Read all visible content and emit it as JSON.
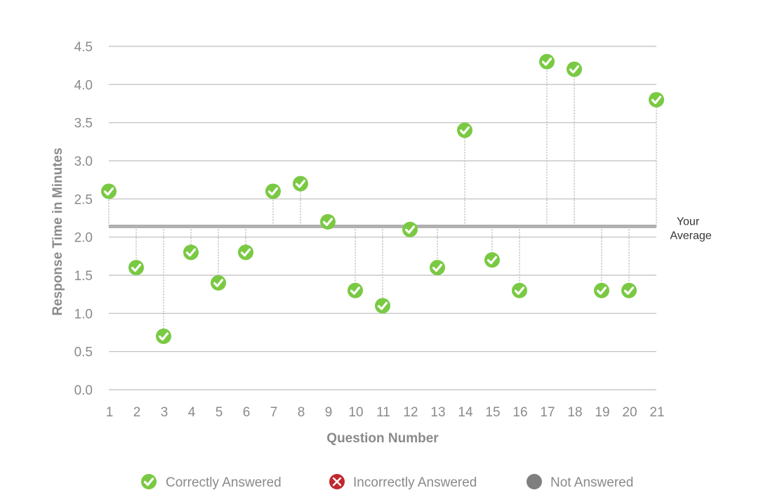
{
  "chart_data": {
    "type": "scatter",
    "ylabel": "Response Time in Minutes",
    "xlabel": "Question Number",
    "ylim": [
      0,
      4.5
    ],
    "y_ticks": [
      "0.0",
      "0.5",
      "1.0",
      "1.5",
      "2.0",
      "2.5",
      "3.0",
      "3.5",
      "4.0",
      "4.5"
    ],
    "y_tick_values": [
      0,
      0.5,
      1.0,
      1.5,
      2.0,
      2.5,
      3.0,
      3.5,
      4.0,
      4.5
    ],
    "categories": [
      "1",
      "2",
      "3",
      "4",
      "5",
      "6",
      "7",
      "8",
      "9",
      "10",
      "11",
      "12",
      "13",
      "14",
      "15",
      "16",
      "17",
      "18",
      "19",
      "20",
      "21"
    ],
    "values": [
      2.6,
      1.6,
      0.7,
      1.8,
      1.4,
      1.8,
      2.6,
      2.7,
      2.2,
      1.3,
      1.1,
      2.1,
      1.6,
      3.4,
      1.7,
      1.3,
      4.3,
      4.2,
      1.3,
      1.3,
      3.8
    ],
    "status": [
      "correct",
      "correct",
      "correct",
      "correct",
      "correct",
      "correct",
      "correct",
      "correct",
      "correct",
      "correct",
      "correct",
      "correct",
      "correct",
      "correct",
      "correct",
      "correct",
      "correct",
      "correct",
      "correct",
      "correct",
      "correct"
    ],
    "average": 2.14,
    "average_label_line1": "Your",
    "average_label_line2": "Average",
    "grid": true,
    "colors": {
      "correct": "#7ac943",
      "incorrect": "#c1272d",
      "not_answered": "#7f7f7f",
      "average_line": "#b0b0b0",
      "grid": "#bdbdbd",
      "stem": "#b5b5b5"
    },
    "legend": {
      "placement": "bottom",
      "items": [
        {
          "label": "Correctly Answered",
          "icon": "check-circle-icon",
          "color": "#7ac943"
        },
        {
          "label": "Incorrectly Answered",
          "icon": "x-circle-icon",
          "color": "#c1272d"
        },
        {
          "label": "Not Answered",
          "icon": "circle-icon",
          "color": "#7f7f7f"
        }
      ]
    }
  }
}
